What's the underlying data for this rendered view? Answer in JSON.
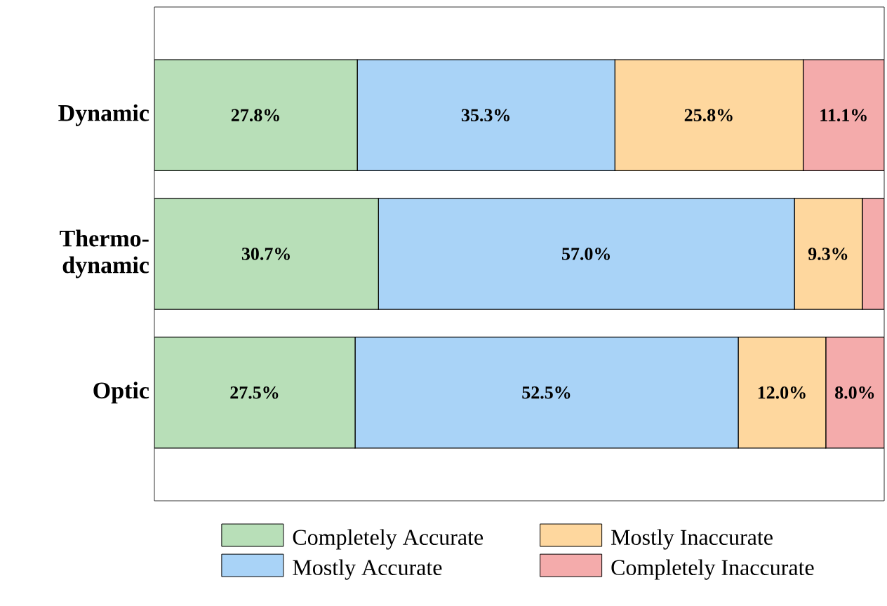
{
  "chart_data": {
    "type": "bar",
    "orientation": "horizontal",
    "stacked": true,
    "categories": [
      "Dynamic",
      "Thermo-dynamic",
      "Optic"
    ],
    "xlim": [
      0,
      100
    ],
    "tick_labels": "y",
    "legend": "bottom",
    "series": [
      {
        "name": "Completely Accurate",
        "color": "#b8dfb8",
        "values": [
          27.8,
          30.7,
          27.5
        ],
        "value_labels": [
          "27.8%",
          "30.7%",
          "27.5%"
        ]
      },
      {
        "name": "Mostly Accurate",
        "color": "#a9d3f7",
        "values": [
          35.3,
          57.0,
          52.5
        ],
        "value_labels": [
          "35.3%",
          "57.0%",
          "52.5%"
        ]
      },
      {
        "name": "Mostly Inaccurate",
        "color": "#fed79e",
        "values": [
          25.8,
          9.3,
          12.0
        ],
        "value_labels": [
          "25.8%",
          "9.3%",
          "12.0%"
        ]
      },
      {
        "name": "Completely Inaccurate",
        "color": "#f4abab",
        "values": [
          11.1,
          3.0,
          8.0
        ],
        "value_labels": [
          "11.1%",
          null,
          "8.0%"
        ]
      }
    ]
  }
}
